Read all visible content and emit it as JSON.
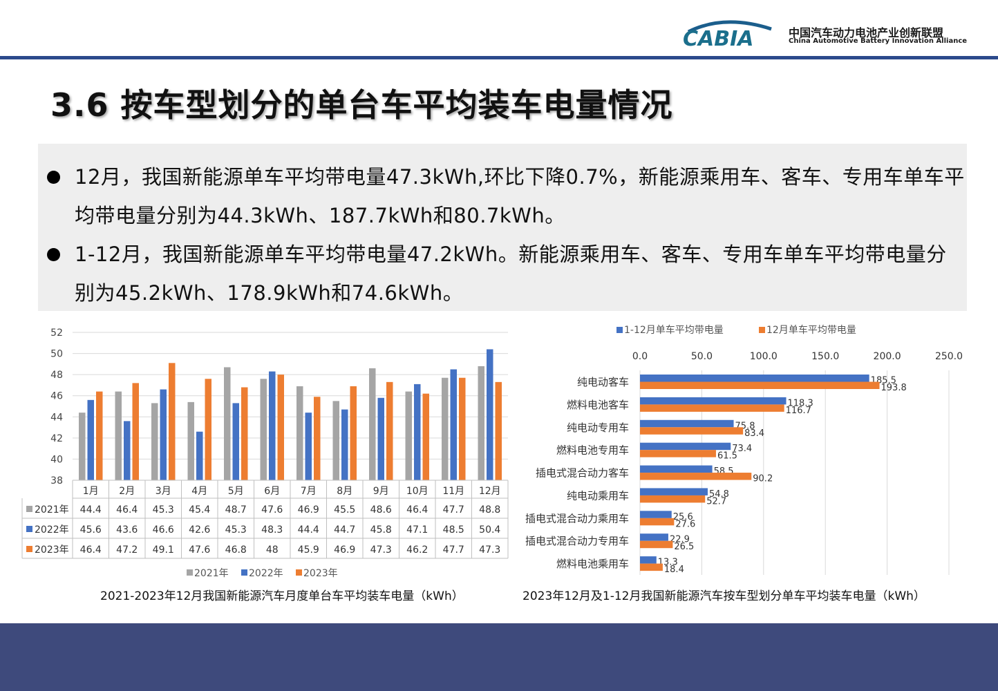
{
  "header": {
    "logo_text": "CABIA",
    "org_cn": "中国汽车动力电池产业创新联盟",
    "org_en": "China Automotive Battery Innovation Alliance"
  },
  "slide": {
    "title": "3.6 按车型划分的单台车平均装车电量情况",
    "bullet1": "12月，我国新能源单车平均带电量47.3kWh,环比下降0.7%，新能源乘用车、客车、专用车单车平均带电量分别为44.3kWh、187.7kWh和80.7kWh。",
    "bullet2": "1-12月，我国新能源单车平均带电量47.2kWh。新能源乘用车、客车、专用车单车平均带电量分别为45.2kWh、178.9kWh和74.6kWh。"
  },
  "chart_data": [
    {
      "type": "bar",
      "title": "2021-2023年12月我国新能源汽车月度单台车平均装车电量（kWh）",
      "categories": [
        "1月",
        "2月",
        "3月",
        "4月",
        "5月",
        "6月",
        "7月",
        "8月",
        "9月",
        "10月",
        "11月",
        "12月"
      ],
      "series": [
        {
          "name": "2021年",
          "values": [
            44.4,
            46.4,
            45.3,
            45.4,
            48.7,
            47.6,
            46.9,
            45.5,
            48.6,
            46.4,
            47.7,
            48.8
          ],
          "color": "#a5a5a5"
        },
        {
          "name": "2022年",
          "values": [
            45.6,
            43.6,
            46.6,
            42.6,
            45.3,
            48.3,
            44.4,
            44.7,
            45.8,
            47.1,
            48.5,
            50.4
          ],
          "color": "#4472c4"
        },
        {
          "name": "2023年",
          "values": [
            46.4,
            47.2,
            49.1,
            47.6,
            46.8,
            48,
            45.9,
            46.9,
            47.3,
            46.2,
            47.7,
            47.3
          ],
          "color": "#ed7d31"
        }
      ],
      "ylim": [
        38,
        52
      ],
      "yticks": [
        38,
        40,
        42,
        44,
        46,
        48,
        50,
        52
      ],
      "grid": true,
      "legend": "bottom",
      "data_table": true
    },
    {
      "type": "bar",
      "orientation": "horizontal",
      "title": "2023年12月及1-12月我国新能源汽车按车型划分单车平均装车电量（kWh）",
      "categories": [
        "纯电动客车",
        "燃料电池客车",
        "纯电动专用车",
        "燃料电池专用车",
        "插电式混合动力客车",
        "纯电动乘用车",
        "插电式混合动力乘用车",
        "插电式混合动力专用车",
        "燃料电池乘用车"
      ],
      "series": [
        {
          "name": "1-12月单车平均带电量",
          "values": [
            185.5,
            118.3,
            75.8,
            73.4,
            58.5,
            54.8,
            25.6,
            22.9,
            13.3
          ],
          "color": "#4472c4"
        },
        {
          "name": "12月单车平均带电量",
          "values": [
            193.8,
            116.7,
            83.4,
            61.5,
            90.2,
            52.7,
            27.6,
            26.5,
            18.4
          ],
          "color": "#ed7d31"
        }
      ],
      "xlim": [
        0,
        250
      ],
      "xticks": [
        "0.0",
        "50.0",
        "100.0",
        "150.0",
        "200.0",
        "250.0"
      ],
      "grid": true,
      "legend": "top"
    }
  ]
}
